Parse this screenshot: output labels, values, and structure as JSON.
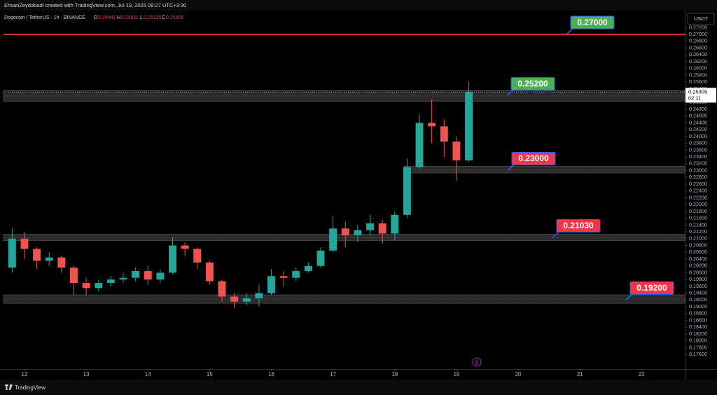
{
  "header": {
    "credit": "EhsanZeydabadi created with TradingView.com, Jul 19, 2025 09:27 UTC+3:30",
    "footer": "TradingView"
  },
  "chart_data": {
    "type": "candlestick",
    "symbol": "Dogecoin / TetherUS · 1h · BINANCE",
    "ohlc": {
      "o_label": "O",
      "open": 0.25442,
      "h_label": "H",
      "high": 0.25611,
      "l_label": "L",
      "low": 0.25125,
      "c_label": "C",
      "close": 0.25305
    },
    "currency": "USDT",
    "countdown": "02:11",
    "up_color": "#26a69a",
    "down_color": "#ef5350",
    "xlim": [
      11.66,
      22.7
    ],
    "xticks": [
      12,
      13,
      14,
      15,
      16,
      17,
      18,
      19,
      20,
      21,
      22
    ],
    "ylim": [
      0.1717,
      0.2766
    ],
    "yticks": [
      {
        "value": 0.176,
        "label": "0.17600"
      },
      {
        "value": 0.178,
        "label": "0.17800"
      },
      {
        "value": 0.18,
        "label": "0.18000"
      },
      {
        "value": 0.182,
        "label": "0.18200"
      },
      {
        "value": 0.184,
        "label": "0.18400"
      },
      {
        "value": 0.186,
        "label": "0.18600"
      },
      {
        "value": 0.188,
        "label": "0.18800"
      },
      {
        "value": 0.19,
        "label": "0.19000"
      },
      {
        "value": 0.192,
        "label": "0.19200"
      },
      {
        "value": 0.194,
        "label": "0.19400"
      },
      {
        "value": 0.196,
        "label": "0.19600"
      },
      {
        "value": 0.198,
        "label": "0.19800"
      },
      {
        "value": 0.2,
        "label": "0.20000"
      },
      {
        "value": 0.202,
        "label": "0.20200"
      },
      {
        "value": 0.204,
        "label": "0.20400"
      },
      {
        "value": 0.206,
        "label": "0.20600"
      },
      {
        "value": 0.208,
        "label": "0.20800"
      },
      {
        "value": 0.21,
        "label": "0.21000"
      },
      {
        "value": 0.212,
        "label": "0.21200"
      },
      {
        "value": 0.214,
        "label": "0.21400"
      },
      {
        "value": 0.216,
        "label": "0.21600"
      },
      {
        "value": 0.218,
        "label": "0.21800"
      },
      {
        "value": 0.22,
        "label": "0.22000"
      },
      {
        "value": 0.222,
        "label": "0.22200"
      },
      {
        "value": 0.224,
        "label": "0.22400"
      },
      {
        "value": 0.226,
        "label": "0.22600"
      },
      {
        "value": 0.228,
        "label": "0.22800"
      },
      {
        "value": 0.23,
        "label": "0.23000"
      },
      {
        "value": 0.232,
        "label": "0.23200"
      },
      {
        "value": 0.234,
        "label": "0.23400"
      },
      {
        "value": 0.236,
        "label": "0.23600"
      },
      {
        "value": 0.238,
        "label": "0.23800"
      },
      {
        "value": 0.24,
        "label": "0.24000"
      },
      {
        "value": 0.242,
        "label": "0.24200"
      },
      {
        "value": 0.244,
        "label": "0.24400"
      },
      {
        "value": 0.246,
        "label": "0.24600"
      },
      {
        "value": 0.248,
        "label": "0.24800"
      },
      {
        "value": 0.25,
        "label": "0.25000"
      },
      {
        "value": 0.254,
        "label": "0.25400"
      },
      {
        "value": 0.256,
        "label": "0.25600"
      },
      {
        "value": 0.258,
        "label": "0.25800"
      },
      {
        "value": 0.26,
        "label": "0.26000"
      },
      {
        "value": 0.262,
        "label": "0.26200"
      },
      {
        "value": 0.264,
        "label": "0.26400"
      },
      {
        "value": 0.266,
        "label": "0.26600"
      },
      {
        "value": 0.268,
        "label": "0.26800"
      },
      {
        "value": 0.27,
        "label": "0.27000"
      },
      {
        "value": 0.272,
        "label": "0.27200"
      }
    ],
    "grid": false,
    "x": [
      11.8,
      12.0,
      12.2,
      12.4,
      12.6,
      12.8,
      13.0,
      13.2,
      13.4,
      13.6,
      13.8,
      14.0,
      14.2,
      14.4,
      14.6,
      14.8,
      15.0,
      15.2,
      15.4,
      15.6,
      15.8,
      16.0,
      16.2,
      16.4,
      16.6,
      16.8,
      17.0,
      17.2,
      17.4,
      17.6,
      17.8,
      18.0,
      18.2,
      18.4,
      18.6,
      18.8,
      19.0,
      19.2
    ],
    "open": [
      0.2015,
      0.21,
      0.207,
      0.2035,
      0.2045,
      0.2015,
      0.197,
      0.1955,
      0.197,
      0.198,
      0.1985,
      0.2005,
      0.198,
      0.2,
      0.208,
      0.207,
      0.203,
      0.1975,
      0.193,
      0.1915,
      0.1925,
      0.194,
      0.199,
      0.1985,
      0.2005,
      0.202,
      0.2065,
      0.213,
      0.211,
      0.2125,
      0.2145,
      0.2115,
      0.217,
      0.231,
      0.244,
      0.243,
      0.2385,
      0.233
    ],
    "high": [
      0.213,
      0.212,
      0.2075,
      0.206,
      0.205,
      0.202,
      0.1985,
      0.198,
      0.199,
      0.2,
      0.2015,
      0.202,
      0.201,
      0.2105,
      0.209,
      0.2075,
      0.2035,
      0.198,
      0.194,
      0.194,
      0.1965,
      0.201,
      0.2005,
      0.2015,
      0.203,
      0.2075,
      0.2165,
      0.215,
      0.214,
      0.217,
      0.2155,
      0.218,
      0.2335,
      0.2465,
      0.251,
      0.245,
      0.24,
      0.25611
    ],
    "low": [
      0.2,
      0.204,
      0.201,
      0.202,
      0.2,
      0.1935,
      0.1935,
      0.1945,
      0.196,
      0.197,
      0.1975,
      0.1965,
      0.197,
      0.1995,
      0.205,
      0.201,
      0.1965,
      0.1915,
      0.1895,
      0.1905,
      0.19,
      0.1935,
      0.196,
      0.1975,
      0.2,
      0.2015,
      0.206,
      0.2075,
      0.209,
      0.211,
      0.2085,
      0.2095,
      0.216,
      0.2305,
      0.238,
      0.234,
      0.227,
      0.2325
    ],
    "close": [
      0.21,
      0.207,
      0.2035,
      0.2045,
      0.2015,
      0.197,
      0.1955,
      0.197,
      0.198,
      0.1985,
      0.2005,
      0.198,
      0.2,
      0.208,
      0.207,
      0.203,
      0.1975,
      0.193,
      0.1915,
      0.1925,
      0.194,
      0.199,
      0.1985,
      0.2005,
      0.202,
      0.2065,
      0.213,
      0.211,
      0.2125,
      0.2145,
      0.2115,
      0.217,
      0.231,
      0.244,
      0.243,
      0.2385,
      0.233,
      0.25305
    ],
    "zones": [
      {
        "low": 0.2503,
        "high": 0.2535
      },
      {
        "low": 0.2293,
        "high": 0.2313,
        "start": 18.15
      },
      {
        "low": 0.2094,
        "high": 0.2113
      },
      {
        "low": 0.191,
        "high": 0.1935
      }
    ],
    "levels": [
      {
        "value": 0.27,
        "label": "0.27000",
        "color": "#4caf50",
        "line_color": "#f23645"
      },
      {
        "value": 0.252,
        "label": "0.25200",
        "color": "#4caf50"
      },
      {
        "value": 0.23,
        "label": "0.23000",
        "color": "#f23645"
      },
      {
        "value": 0.2103,
        "label": "0.21030",
        "color": "#f23645"
      },
      {
        "value": 0.192,
        "label": "0.19200",
        "color": "#f23645"
      }
    ]
  }
}
